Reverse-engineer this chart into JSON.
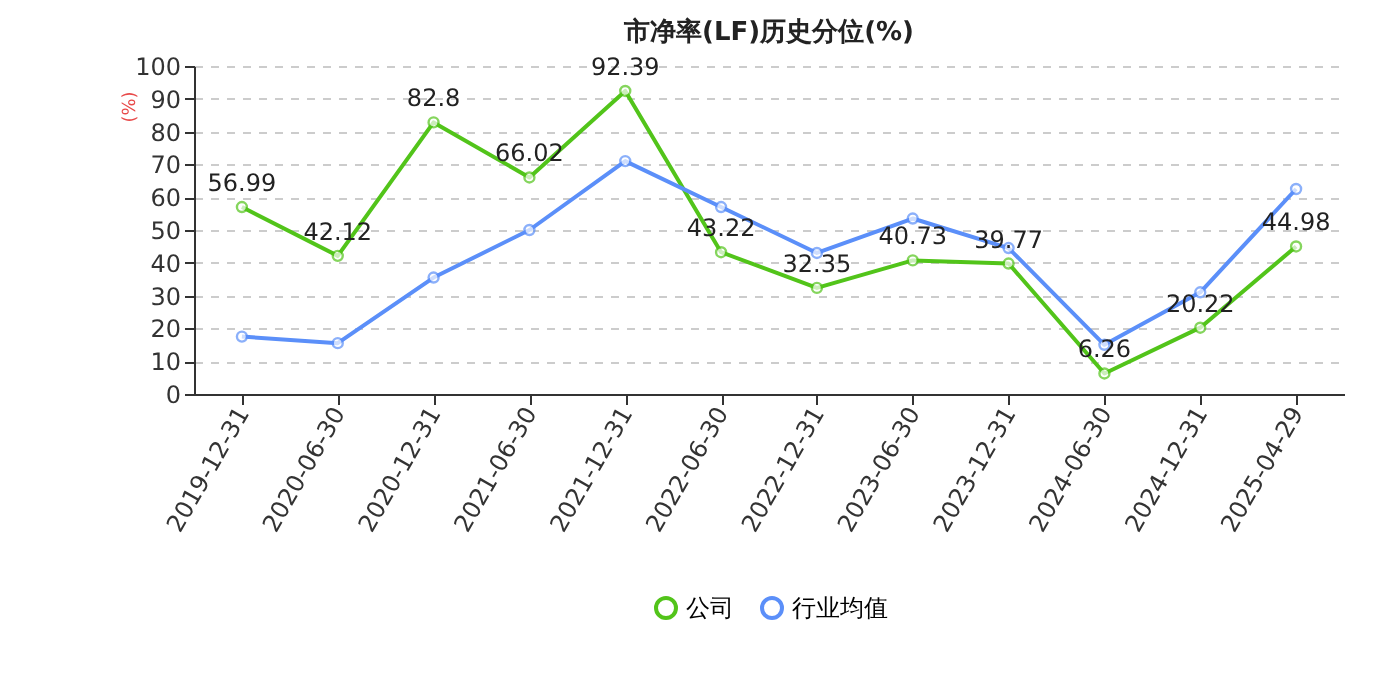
{
  "chart_data": {
    "type": "line",
    "title": "市净率(LF)历史分位(%)",
    "ylabel": "(%)",
    "categories": [
      "2019-12-31",
      "2020-06-30",
      "2020-12-31",
      "2021-06-30",
      "2021-12-31",
      "2022-06-30",
      "2022-12-31",
      "2023-06-30",
      "2023-12-31",
      "2024-06-30",
      "2024-12-31",
      "2025-04-29"
    ],
    "series": [
      {
        "name": "公司",
        "color": "#52c41a",
        "values": [
          56.99,
          42.12,
          82.8,
          66.02,
          92.39,
          43.22,
          32.35,
          40.73,
          39.77,
          6.26,
          20.22,
          44.98
        ],
        "value_labels": [
          "56.99",
          "42.12",
          "82.8",
          "66.02",
          "92.39",
          "43.22",
          "32.35",
          "40.73",
          "39.77",
          "6.26",
          "20.22",
          "44.98"
        ]
      },
      {
        "name": "行业均值",
        "color": "#5b8ff9",
        "values": [
          17.5,
          15.5,
          35.5,
          50,
          71,
          57,
          43,
          53.5,
          44.5,
          15,
          31,
          62.5
        ]
      }
    ],
    "ylim": [
      0,
      100
    ],
    "yticks": [
      0,
      10,
      20,
      30,
      40,
      50,
      60,
      70,
      80,
      90,
      100
    ],
    "grid": "y",
    "legend": "bottom",
    "marker": "circle",
    "line_style": "solid"
  }
}
